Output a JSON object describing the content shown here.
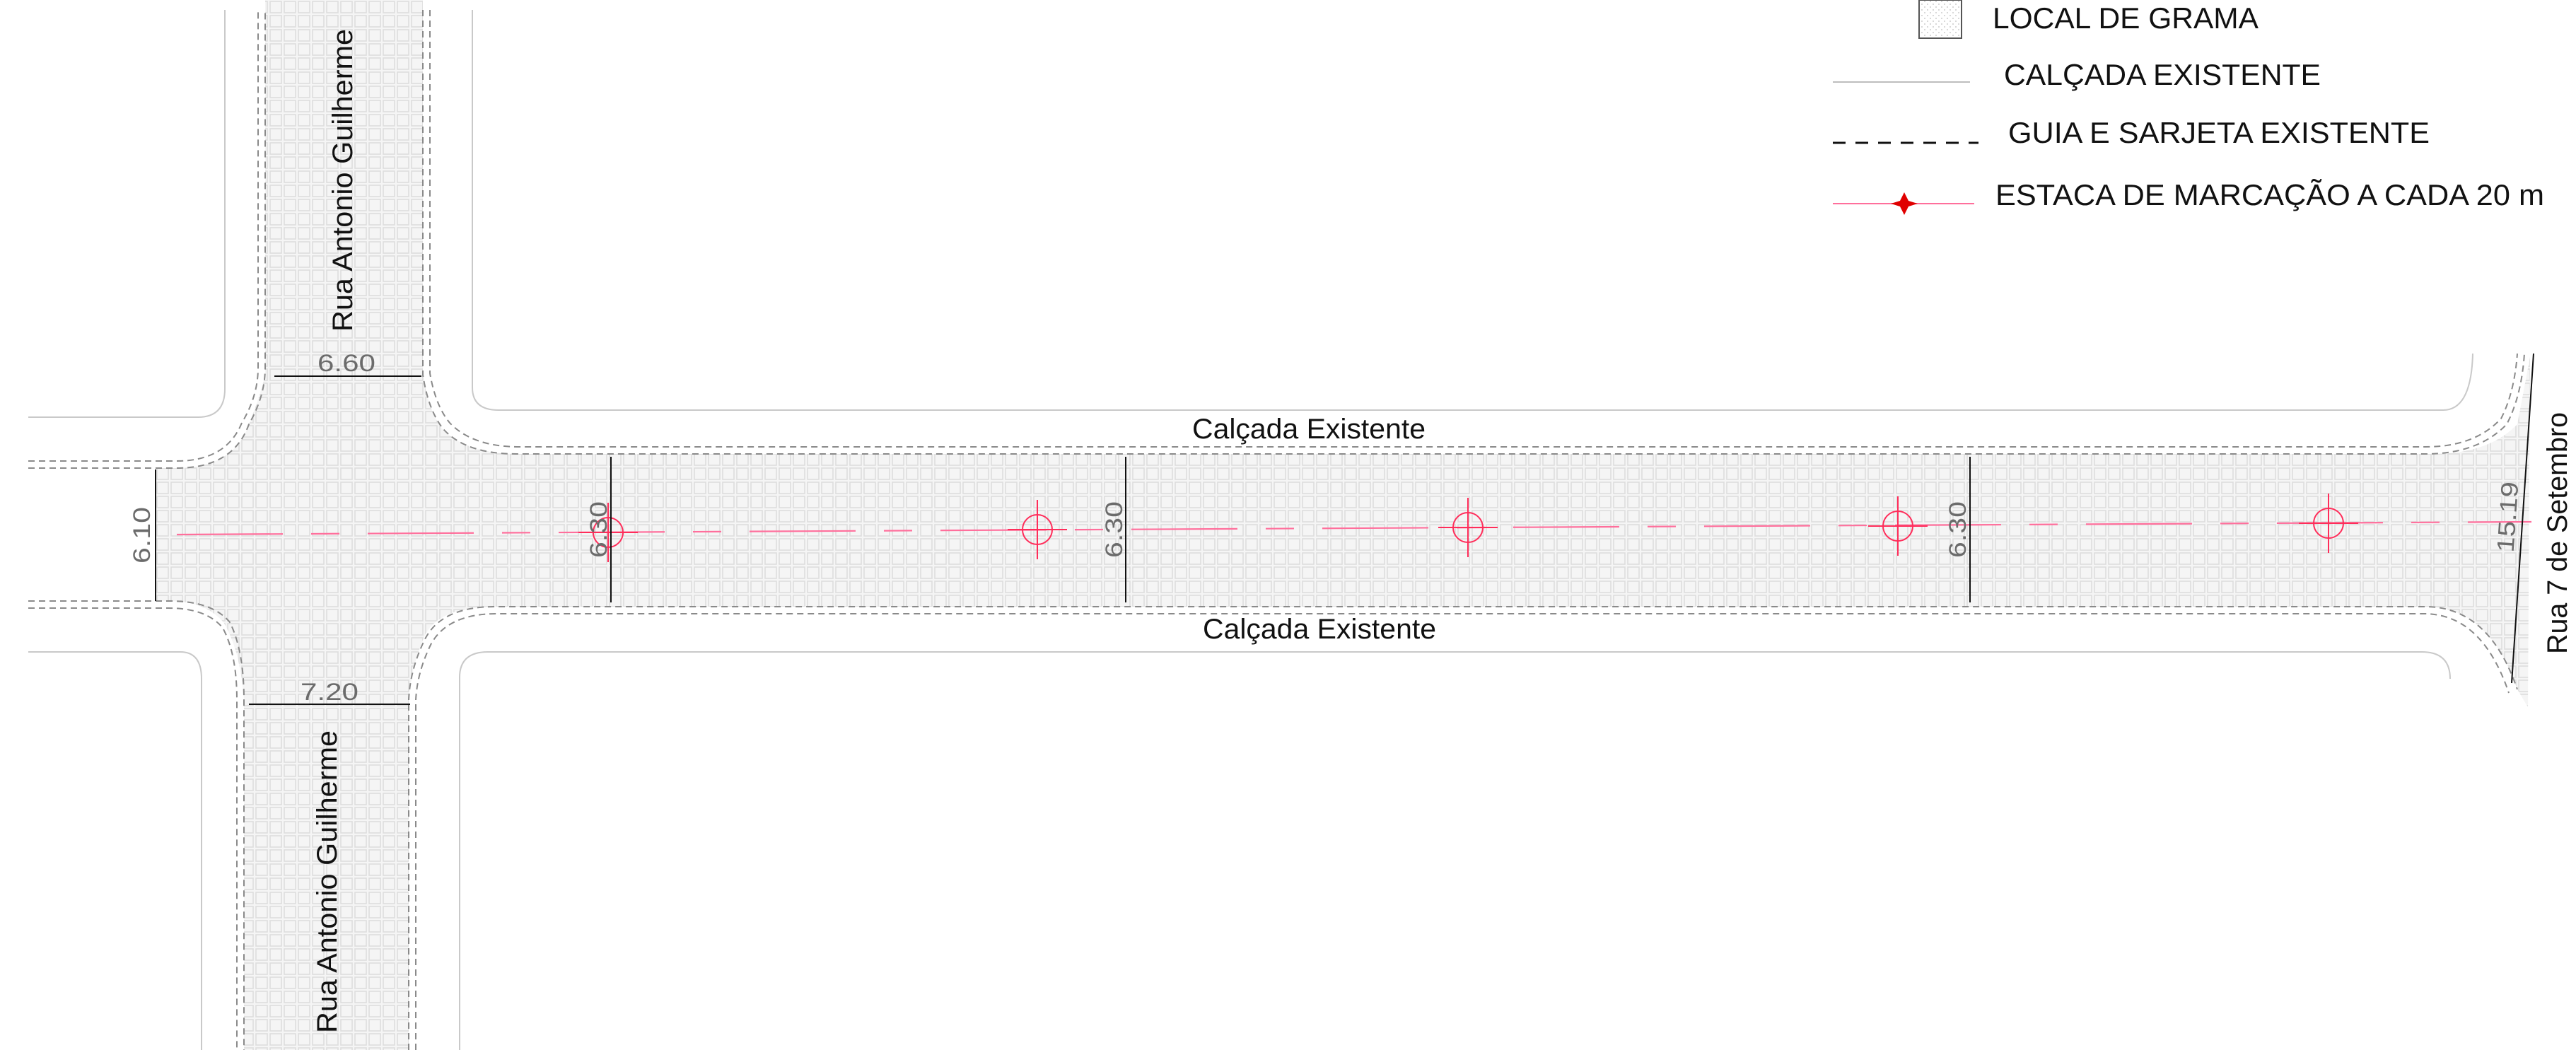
{
  "legend": {
    "items": [
      {
        "id": "grass",
        "label": "LOCAL DE GRAMA",
        "symbol": "hatched-box-icon"
      },
      {
        "id": "sidewalk",
        "label": "CALÇADA EXISTENTE",
        "symbol": "thin-line-icon"
      },
      {
        "id": "curb",
        "label": "GUIA E SARJETA EXISTENTE",
        "symbol": "dashed-line-icon"
      },
      {
        "id": "stake",
        "label": "ESTACA DE MARCAÇÃO A CADA 20 m",
        "symbol": "red-cross-marker-icon"
      }
    ]
  },
  "labels": {
    "street_top": "Rua Antonio Guilherme",
    "street_bottom": "Rua Antonio Guilherme",
    "street_right": "Rua 7 de Setembro",
    "sidewalk_top": "Calçada Existente",
    "sidewalk_bottom": "Calçada Existente"
  },
  "dimensions": {
    "top_street_width": "6.60",
    "bottom_street_width": "7.20",
    "left_width": "6.10",
    "section_1": "6.30",
    "section_2": "6.30",
    "section_3": "6.30",
    "right_width": "15.19"
  },
  "colors": {
    "centerline": "#ff6f9c",
    "stake_marker": "#ff2d5a",
    "legend_stake_dot": "#e00000",
    "paving_fill": "#f4f4f4",
    "paving_grid": "#dcdcdc"
  }
}
